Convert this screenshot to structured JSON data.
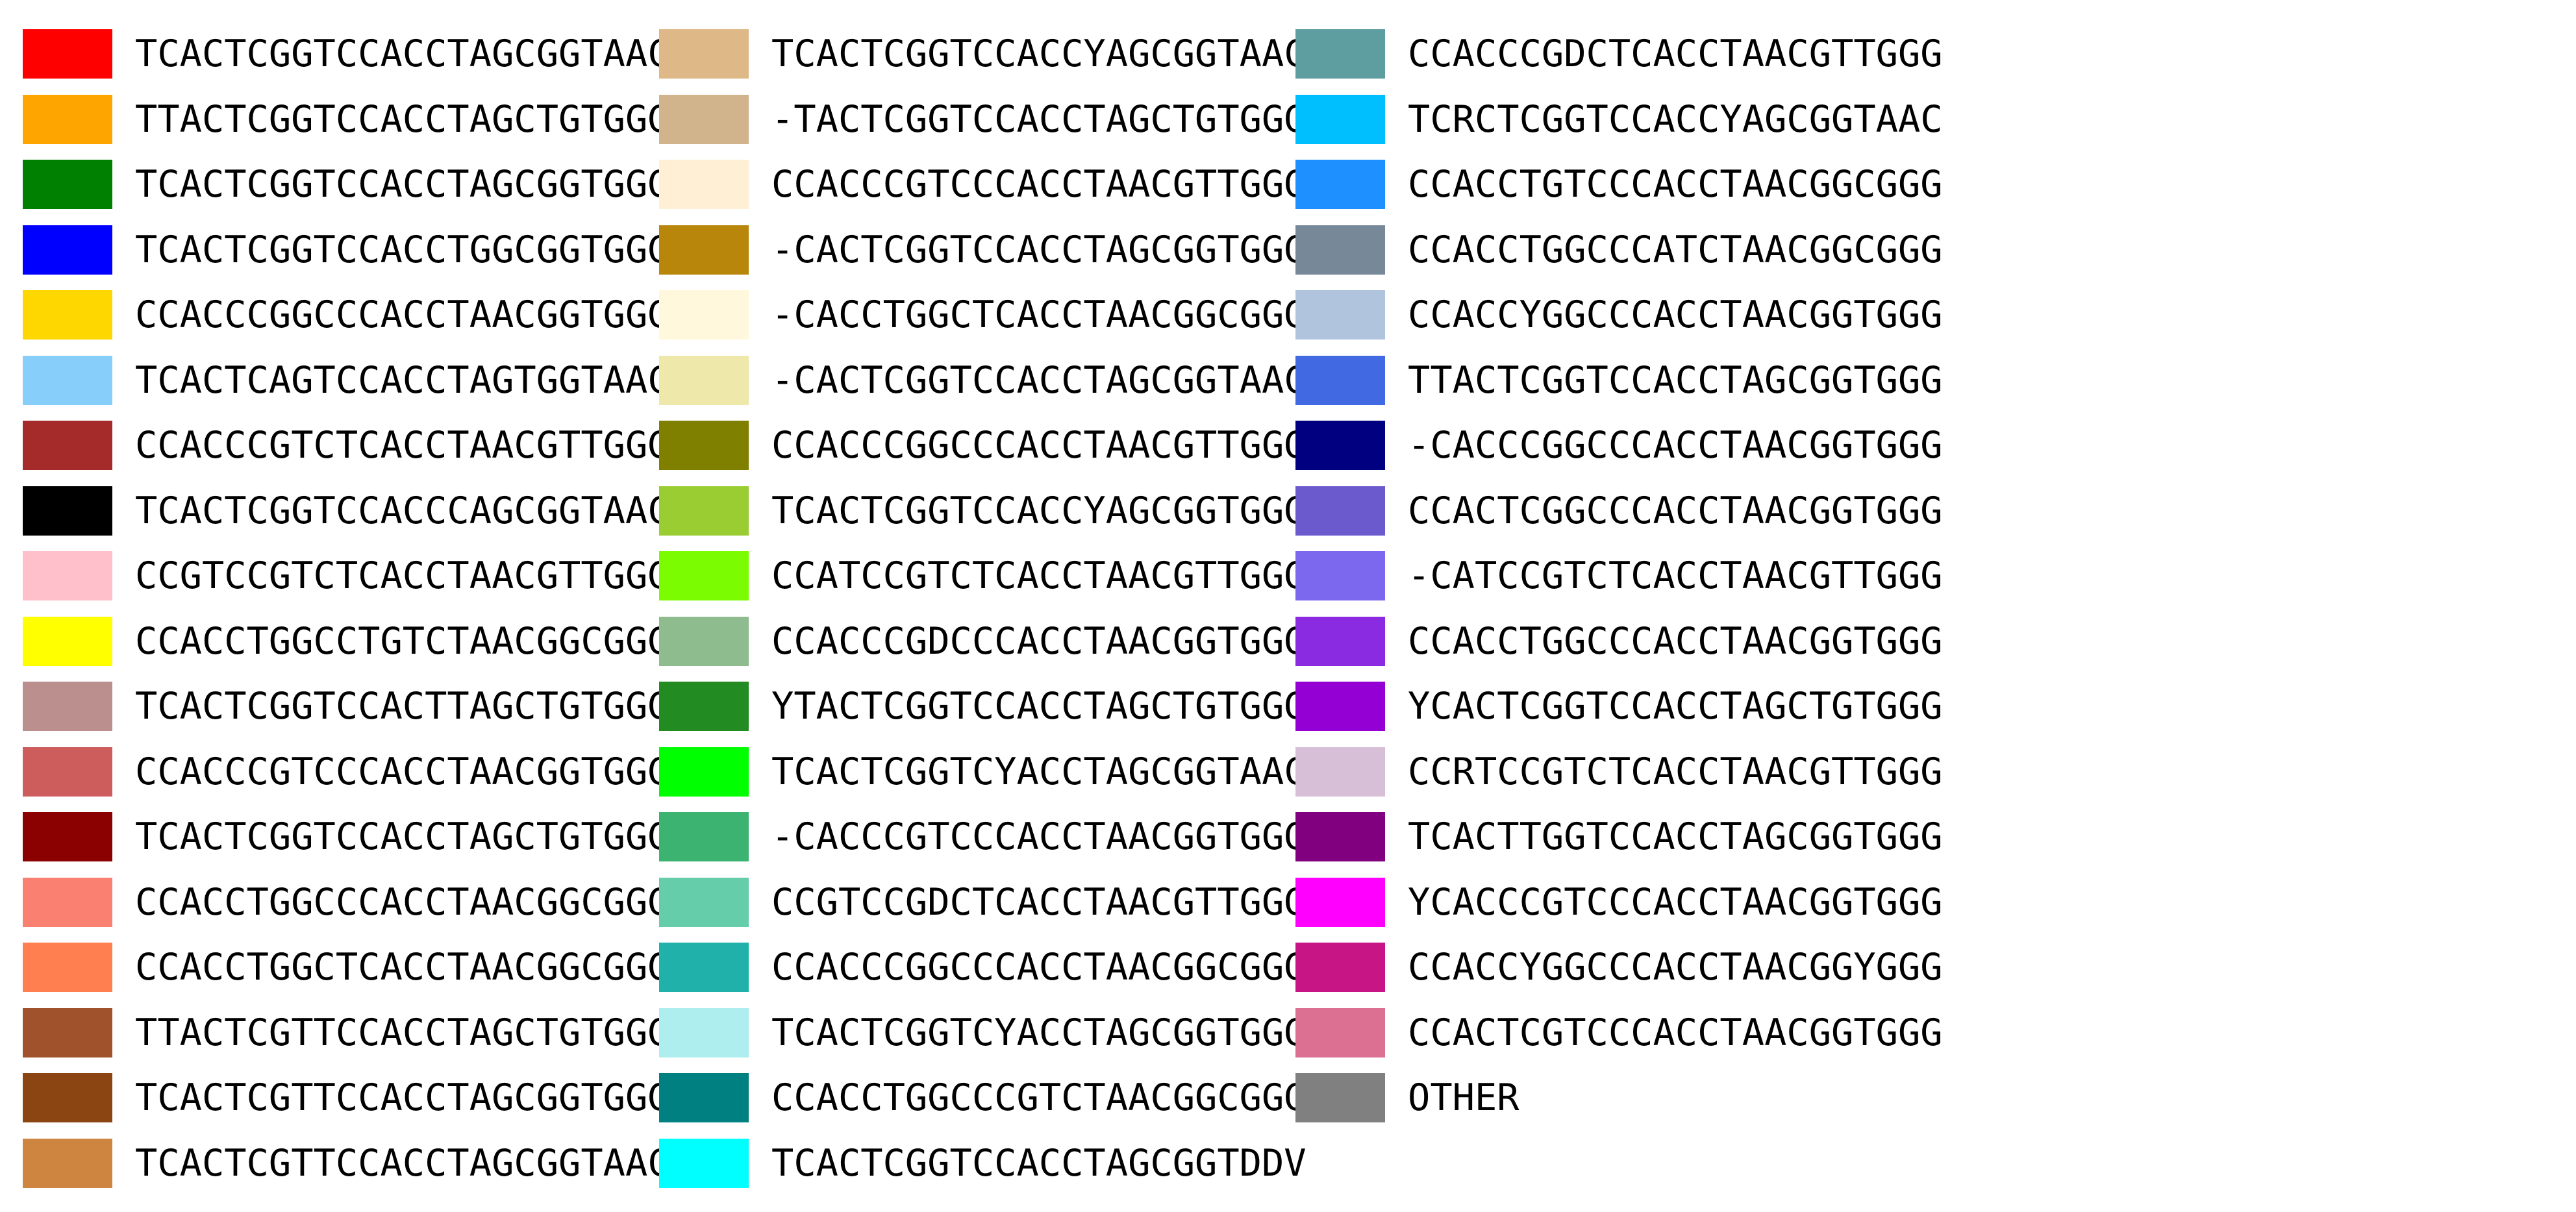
{
  "chart_data": {
    "type": "legend",
    "columns": [
      [
        {
          "label": "TCACTCGGTCCACCTAGCGGTAAC",
          "color": "#ff0000"
        },
        {
          "label": "TTACTCGGTCCACCTAGCTGTGGG",
          "color": "#ffa500"
        },
        {
          "label": "TCACTCGGTCCACCTAGCGGTGGG",
          "color": "#008000"
        },
        {
          "label": "TCACTCGGTCCACCTGGCGGTGGG",
          "color": "#0000ff"
        },
        {
          "label": "CCACCCGGCCCACCTAACGGTGGG",
          "color": "#ffd700"
        },
        {
          "label": "TCACTCAGTCCACCTAGTGGTAAC",
          "color": "#87cefa"
        },
        {
          "label": "CCACCCGTCTCACCTAACGTTGGG",
          "color": "#a52a2a"
        },
        {
          "label": "TCACTCGGTCCACCCAGCGGTAAC",
          "color": "#000000"
        },
        {
          "label": "CCGTCCGTCTCACCTAACGTTGGG",
          "color": "#ffc0cb"
        },
        {
          "label": "CCACCTGGCCTGTCTAACGGCGGG",
          "color": "#ffff00"
        },
        {
          "label": "TCACTCGGTCCACTTAGCTGTGGG",
          "color": "#bc8f8f"
        },
        {
          "label": "CCACCCGTCCCACCTAACGGTGGG",
          "color": "#cd5c5c"
        },
        {
          "label": "TCACTCGGTCCACCTAGCTGTGGG",
          "color": "#8b0000"
        },
        {
          "label": "CCACCTGGCCCACCTAACGGCGGG",
          "color": "#fa8072"
        },
        {
          "label": "CCACCTGGCTCACCTAACGGCGGG",
          "color": "#ff7f50"
        },
        {
          "label": "TTACTCGTTCCACCTAGCTGTGGG",
          "color": "#a0522d"
        },
        {
          "label": "TCACTCGTTCCACCTAGCGGTGGG",
          "color": "#8b4513"
        },
        {
          "label": "TCACTCGTTCCACCTAGCGGTAAC",
          "color": "#cd853f"
        }
      ],
      [
        {
          "label": "TCACTCGGTCCACCYAGCGGTAAC",
          "color": "#deb887"
        },
        {
          "label": "-TACTCGGTCCACCTAGCTGTGGG",
          "color": "#d2b48c"
        },
        {
          "label": "CCACCCGTCCCACCTAACGTTGGG",
          "color": "#ffefd5"
        },
        {
          "label": "-CACTCGGTCCACCTAGCGGTGGG",
          "color": "#b8860b"
        },
        {
          "label": "-CACCTGGCTCACCTAACGGCGGG",
          "color": "#fff8dc"
        },
        {
          "label": "-CACTCGGTCCACCTAGCGGTAAC",
          "color": "#eee8aa"
        },
        {
          "label": "CCACCCGGCCCACCTAACGTTGGG",
          "color": "#808000"
        },
        {
          "label": "TCACTCGGTCCACCYAGCGGTGGG",
          "color": "#9acd32"
        },
        {
          "label": "CCATCCGTCTCACCTAACGTTGGG",
          "color": "#7cfc00"
        },
        {
          "label": "CCACCCGDCCCACCTAACGGTGGG",
          "color": "#8fbc8f"
        },
        {
          "label": "YTACTCGGTCCACCTAGCTGTGGG",
          "color": "#228b22"
        },
        {
          "label": "TCACTCGGTCYACCTAGCGGTAAC",
          "color": "#00ff00"
        },
        {
          "label": "-CACCCGTCCCACCTAACGGTGGG",
          "color": "#3cb371"
        },
        {
          "label": "CCGTCCGDCTCACCTAACGTTGGG",
          "color": "#66cdaa"
        },
        {
          "label": "CCACCCGGCCCACCTAACGGCGGG",
          "color": "#20b2aa"
        },
        {
          "label": "TCACTCGGTCYACCTAGCGGTGGG",
          "color": "#afeeee"
        },
        {
          "label": "CCACCTGGCCCGTCTAACGGCGGG",
          "color": "#008080"
        },
        {
          "label": "TCACTCGGTCCACCTAGCGGTDDV",
          "color": "#00ffff"
        }
      ],
      [
        {
          "label": "CCACCCGDCTCACCTAACGTTGGG",
          "color": "#5f9ea0"
        },
        {
          "label": "TCRCTCGGTCCACCYAGCGGTAAC",
          "color": "#00bfff"
        },
        {
          "label": "CCACCTGTCCCACCTAACGGCGGG",
          "color": "#1e90ff"
        },
        {
          "label": "CCACCTGGCCCATCTAACGGCGGG",
          "color": "#778899"
        },
        {
          "label": "CCACCYGGCCCACCTAACGGTGGG",
          "color": "#b0c4de"
        },
        {
          "label": "TTACTCGGTCCACCTAGCGGTGGG",
          "color": "#4169e1"
        },
        {
          "label": "-CACCCGGCCCACCTAACGGTGGG",
          "color": "#000080"
        },
        {
          "label": "CCACTCGGCCCACCTAACGGTGGG",
          "color": "#6a5acd"
        },
        {
          "label": "-CATCCGTCTCACCTAACGTTGGG",
          "color": "#7b68ee"
        },
        {
          "label": "CCACCTGGCCCACCTAACGGTGGG",
          "color": "#8a2be2"
        },
        {
          "label": "YCACTCGGTCCACCTAGCTGTGGG",
          "color": "#9400d3"
        },
        {
          "label": "CCRTCCGTCTCACCTAACGTTGGG",
          "color": "#d8bfd8"
        },
        {
          "label": "TCACTTGGTCCACCTAGCGGTGGG",
          "color": "#800080"
        },
        {
          "label": "YCACCCGTCCCACCTAACGGTGGG",
          "color": "#ff00ff"
        },
        {
          "label": "CCACCYGGCCCACCTAACGGYGGG",
          "color": "#c71585"
        },
        {
          "label": "CCACTCGTCCCACCTAACGGTGGG",
          "color": "#db7093"
        },
        {
          "label": "OTHER",
          "color": "#808080"
        }
      ]
    ]
  }
}
